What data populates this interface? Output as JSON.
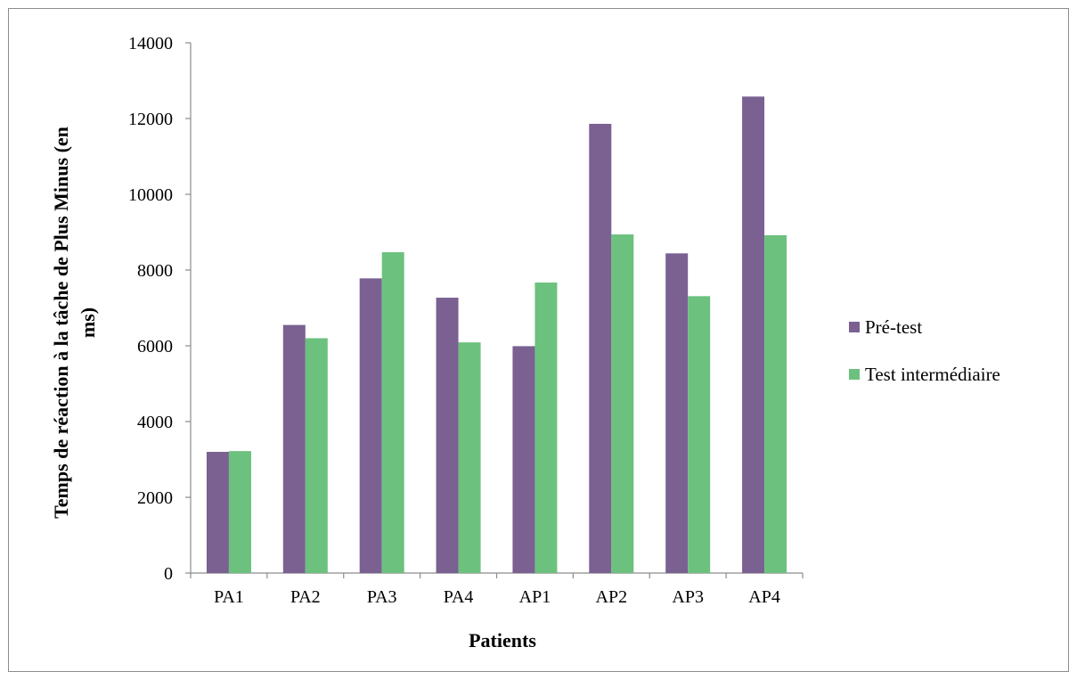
{
  "chart_data": {
    "type": "bar",
    "title": "",
    "xlabel": "Patients",
    "ylabel_lines": [
      "Temps de réaction à la tâche de Plus Minus (en",
      "ms)"
    ],
    "categories": [
      "PA1",
      "PA2",
      "PA3",
      "PA4",
      "AP1",
      "AP2",
      "AP3",
      "AP4"
    ],
    "series": [
      {
        "name": "Pré-test",
        "color": "#7a6192",
        "values": [
          3200,
          6550,
          7780,
          7270,
          5990,
          11860,
          8440,
          12580
        ]
      },
      {
        "name": "Test intermédiaire",
        "color": "#6cc17e",
        "values": [
          3220,
          6200,
          8470,
          6090,
          7670,
          8940,
          7310,
          8920
        ]
      }
    ],
    "ylim": [
      0,
      14000
    ],
    "yticks": [
      0,
      2000,
      4000,
      6000,
      8000,
      10000,
      12000,
      14000
    ],
    "grid": false,
    "legend_position": "right"
  }
}
